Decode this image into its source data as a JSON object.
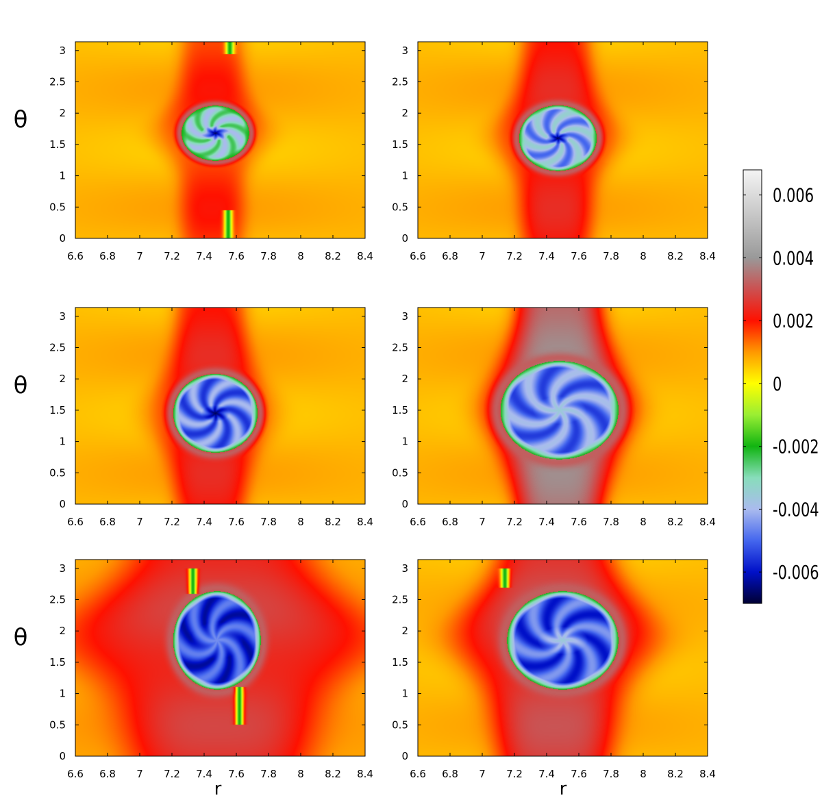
{
  "chart_data": {
    "type": "heatmap",
    "layout": "3 rows x 2 columns of panels sharing one colorbar",
    "x_axis": {
      "label": "r",
      "range": [
        6.6,
        8.4
      ],
      "ticks": [
        "6.6",
        "6.8",
        "7",
        "7.2",
        "7.4",
        "7.6",
        "7.8",
        "8",
        "8.2",
        "8.4"
      ]
    },
    "y_axis": {
      "label": "θ",
      "range": [
        0,
        3.14
      ],
      "ticks": [
        "0",
        "0.5",
        "1",
        "1.5",
        "2",
        "2.5",
        "3"
      ]
    },
    "colorbar": {
      "range": [
        -0.007,
        0.0068
      ],
      "ticks": [
        "0.006",
        "0.004",
        "0.002",
        "0",
        "-0.002",
        "-0.004",
        "-0.006"
      ],
      "tick_values": [
        0.006,
        0.004,
        0.002,
        0,
        -0.002,
        -0.004,
        -0.006
      ],
      "colormap": [
        {
          "v": -0.007,
          "color": "#000033"
        },
        {
          "v": -0.006,
          "color": "#0010c8"
        },
        {
          "v": -0.005,
          "color": "#4466ee"
        },
        {
          "v": -0.004,
          "color": "#aabbee"
        },
        {
          "v": -0.003,
          "color": "#88ddbb"
        },
        {
          "v": -0.002,
          "color": "#11b411"
        },
        {
          "v": -0.001,
          "color": "#99ee33"
        },
        {
          "v": 0.0,
          "color": "#ffff00"
        },
        {
          "v": 0.001,
          "color": "#ff9900"
        },
        {
          "v": 0.002,
          "color": "#ff1100"
        },
        {
          "v": 0.003,
          "color": "#cc5050"
        },
        {
          "v": 0.004,
          "color": "#999999"
        },
        {
          "v": 0.005,
          "color": "#bbbbbb"
        },
        {
          "v": 0.0068,
          "color": "#f4f4f4"
        }
      ]
    },
    "panels": [
      {
        "row": 0,
        "col": 0,
        "background": 0.0007,
        "band": {
          "value": 0.0018,
          "r_center": 7.45,
          "width": 0.2
        },
        "vortex": {
          "r_center": 7.47,
          "theta_center": 1.68,
          "r_radius": 0.2,
          "theta_radius": 0.42,
          "rim": -0.002,
          "interior": -0.0032,
          "core": -0.0068,
          "core_size": 0.28
        },
        "filaments": [
          {
            "r": 7.55,
            "theta0": 0.0,
            "theta1": 0.45,
            "value": -0.002
          },
          {
            "r": 7.56,
            "theta0": 2.95,
            "theta1": 3.14,
            "value": -0.002
          }
        ]
      },
      {
        "row": 0,
        "col": 1,
        "background": 0.0007,
        "band": {
          "value": 0.0022,
          "r_center": 7.46,
          "width": 0.22
        },
        "vortex": {
          "r_center": 7.47,
          "theta_center": 1.6,
          "r_radius": 0.23,
          "theta_radius": 0.5,
          "rim": -0.002,
          "interior": -0.0042,
          "core": -0.0068,
          "core_size": 0.2
        },
        "filaments": []
      },
      {
        "row": 1,
        "col": 0,
        "background": 0.0007,
        "band": {
          "value": 0.0022,
          "r_center": 7.44,
          "width": 0.22
        },
        "vortex": {
          "r_center": 7.47,
          "theta_center": 1.45,
          "r_radius": 0.25,
          "theta_radius": 0.6,
          "rim": -0.002,
          "interior": -0.0048,
          "core": -0.0068,
          "core_size": 0.22
        },
        "filaments": []
      },
      {
        "row": 1,
        "col": 1,
        "background": 0.0007,
        "band": {
          "value": 0.0036,
          "r_center": 7.48,
          "width": 0.26
        },
        "vortex": {
          "r_center": 7.48,
          "theta_center": 1.5,
          "r_radius": 0.35,
          "theta_radius": 0.75,
          "rim": -0.002,
          "interior": -0.0047,
          "core": -0.0035,
          "core_size": 0.3
        },
        "filaments": []
      },
      {
        "row": 2,
        "col": 0,
        "background": 0.0009,
        "band": {
          "value": 0.0026,
          "r_center": 7.5,
          "width": 0.55
        },
        "vortex": {
          "r_center": 7.48,
          "theta_center": 1.85,
          "r_radius": 0.26,
          "theta_radius": 0.75,
          "rim": -0.002,
          "interior": -0.0055,
          "core": -0.0045,
          "core_size": 0.4
        },
        "filaments": [
          {
            "r": 7.62,
            "theta0": 0.5,
            "theta1": 1.1,
            "value": -0.002
          },
          {
            "r": 7.33,
            "theta0": 2.6,
            "theta1": 3.0,
            "value": -0.002
          }
        ]
      },
      {
        "row": 2,
        "col": 1,
        "background": 0.0007,
        "band": {
          "value": 0.0028,
          "r_center": 7.45,
          "width": 0.35
        },
        "vortex": {
          "r_center": 7.5,
          "theta_center": 1.85,
          "r_radius": 0.33,
          "theta_radius": 0.75,
          "rim": -0.002,
          "interior": -0.0052,
          "core": -0.0035,
          "core_size": 0.3
        },
        "filaments": [
          {
            "r": 7.14,
            "theta0": 2.7,
            "theta1": 3.0,
            "value": -0.002
          }
        ]
      }
    ]
  }
}
